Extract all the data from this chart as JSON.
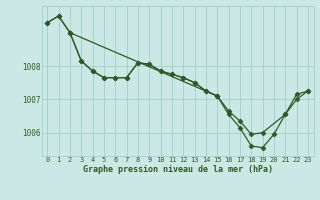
{
  "title": "Graphe pression niveau de la mer (hPa)",
  "bg_color": "#cce8e5",
  "grid_color": "#9ecfcc",
  "line_color": "#2d5a27",
  "marker_color": "#2d5a27",
  "xlim": [
    -0.5,
    23.5
  ],
  "ylim": [
    1005.3,
    1009.8
  ],
  "yticks": [
    1006,
    1007,
    1008
  ],
  "xticks": [
    0,
    1,
    2,
    3,
    4,
    5,
    6,
    7,
    8,
    9,
    10,
    11,
    12,
    13,
    14,
    15,
    16,
    17,
    18,
    19,
    20,
    21,
    22,
    23
  ],
  "series1_x": [
    0,
    1,
    2,
    3,
    4,
    5,
    6,
    7,
    8,
    9,
    10,
    11,
    12,
    13,
    14,
    15,
    16,
    17,
    18,
    19,
    21,
    22,
    23
  ],
  "series1_y": [
    1009.3,
    1009.5,
    1009.0,
    1008.15,
    1007.85,
    1007.65,
    1007.65,
    1007.65,
    1008.1,
    1008.05,
    1007.85,
    1007.75,
    1007.65,
    1007.5,
    1007.25,
    1007.1,
    1006.65,
    1006.35,
    1005.95,
    1006.0,
    1006.55,
    1007.15,
    1007.25
  ],
  "series2_x": [
    0,
    1,
    2,
    15,
    16,
    17,
    18,
    19,
    20,
    21,
    22,
    23
  ],
  "series2_y": [
    1009.3,
    1009.5,
    1009.0,
    1007.1,
    1006.55,
    1006.15,
    1005.6,
    1005.55,
    1005.95,
    1006.55,
    1007.0,
    1007.25
  ],
  "series3_x": [
    2,
    3,
    4,
    5,
    6,
    7,
    8,
    9,
    10,
    11,
    12,
    13,
    14,
    15
  ],
  "series3_y": [
    1009.0,
    1008.15,
    1007.85,
    1007.65,
    1007.65,
    1007.65,
    1008.1,
    1008.05,
    1007.85,
    1007.75,
    1007.65,
    1007.5,
    1007.25,
    1007.1
  ]
}
